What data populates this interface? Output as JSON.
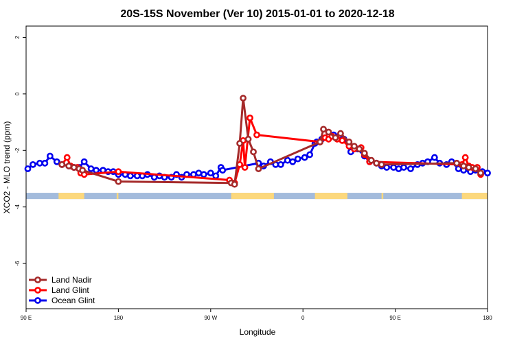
{
  "chart_data": {
    "type": "line",
    "title": "20S-15S November (Ver 10)   2015-01-01 to 2020-12-18",
    "xlabel": "Longitude",
    "ylabel": "XCO2 - MLO trend (ppm)",
    "xlim": [
      -90,
      180
    ],
    "ylim": [
      -7.6,
      2.4
    ],
    "x_ticks": [
      {
        "value": -90,
        "label": "90 E"
      },
      {
        "value": -36,
        "label": "180"
      },
      {
        "value": 18,
        "label": "90 W"
      },
      {
        "value": 72,
        "label": "0"
      },
      {
        "value": 126,
        "label": "90 E"
      },
      {
        "value": 180,
        "label": "180"
      }
    ],
    "y_ticks": [
      {
        "value": 2,
        "label": "2"
      },
      {
        "value": 0,
        "label": "0"
      },
      {
        "value": -2,
        "label": "-2"
      },
      {
        "value": -4,
        "label": "-4"
      },
      {
        "value": -6,
        "label": "-6"
      }
    ],
    "land_band": {
      "y_top": -3.5,
      "y_bottom": -3.72,
      "ocean_color": "#a3bbdc",
      "land_color": "#fcd87c",
      "land_segments": [
        [
          -71,
          -56
        ],
        [
          -37,
          -36
        ],
        [
          30,
          55
        ],
        [
          79,
          98
        ],
        [
          118,
          119
        ],
        [
          165,
          180
        ]
      ]
    },
    "legend_position": "bottom-left",
    "series": [
      {
        "name": "Land Nadir",
        "color": "#a52a2a",
        "x": [
          -69,
          -65,
          -62,
          -59,
          -57,
          -36,
          30,
          32,
          35,
          37,
          40,
          43,
          46,
          82,
          84,
          87,
          91,
          94,
          99,
          102,
          105,
          108,
          112,
          115,
          118,
          162,
          166,
          169,
          173,
          176
        ],
        "y": [
          -2.5,
          -2.55,
          -2.6,
          -2.65,
          -2.7,
          -3.1,
          -3.15,
          -3.2,
          -1.75,
          -0.15,
          -1.6,
          -2.05,
          -2.65,
          -1.7,
          -1.25,
          -1.35,
          -1.55,
          -1.4,
          -1.7,
          -1.85,
          -1.95,
          -2.1,
          -2.35,
          -2.45,
          -2.5,
          -2.45,
          -2.55,
          -2.6,
          -2.65,
          -2.8
        ]
      },
      {
        "name": "Land Glint",
        "color": "#ff0000",
        "x": [
          -69,
          -66,
          -64,
          -62,
          -60,
          -58,
          -56,
          -36,
          29,
          32,
          35,
          37,
          38,
          41,
          45,
          82,
          85,
          87,
          89,
          92,
          95,
          99,
          102,
          106,
          108,
          111,
          165,
          167,
          169,
          171,
          174,
          176
        ],
        "y": [
          -2.5,
          -2.25,
          -2.55,
          -2.6,
          -2.6,
          -2.8,
          -2.85,
          -2.75,
          -3.05,
          -3.15,
          -2.5,
          -1.65,
          -2.6,
          -0.85,
          -1.45,
          -1.7,
          -1.55,
          -1.6,
          -1.5,
          -1.6,
          -1.65,
          -1.85,
          -1.95,
          -1.9,
          -2.15,
          -2.4,
          -2.5,
          -2.25,
          -2.55,
          -2.6,
          -2.6,
          -2.85
        ]
      },
      {
        "name": "Ocean Glint",
        "color": "#0000ee",
        "x": [
          -89,
          -86,
          -82,
          -79,
          -76,
          -72,
          -69,
          -65,
          -62,
          -59,
          -56,
          -52,
          -49,
          -45,
          -42,
          -39,
          -36,
          -32,
          -29,
          -25,
          -22,
          -19,
          -15,
          -12,
          -9,
          -5,
          -2,
          1,
          4,
          8,
          11,
          14,
          18,
          21,
          24,
          25,
          46,
          49,
          53,
          56,
          59,
          63,
          66,
          69,
          73,
          76,
          79,
          80,
          83,
          87,
          90,
          93,
          96,
          100,
          104,
          108,
          111,
          115,
          118,
          121,
          125,
          128,
          131,
          135,
          139,
          142,
          145,
          149,
          152,
          156,
          159,
          163,
          166,
          170,
          173,
          177,
          180
        ],
        "y": [
          -2.65,
          -2.5,
          -2.45,
          -2.45,
          -2.2,
          -2.4,
          -2.5,
          -2.55,
          -2.6,
          -2.6,
          -2.4,
          -2.65,
          -2.7,
          -2.7,
          -2.75,
          -2.75,
          -2.85,
          -2.85,
          -2.9,
          -2.9,
          -2.9,
          -2.85,
          -2.95,
          -2.9,
          -2.95,
          -2.95,
          -2.85,
          -2.95,
          -2.85,
          -2.85,
          -2.8,
          -2.85,
          -2.8,
          -2.9,
          -2.6,
          -2.7,
          -2.45,
          -2.55,
          -2.4,
          -2.5,
          -2.5,
          -2.35,
          -2.4,
          -2.3,
          -2.25,
          -2.15,
          -1.75,
          -1.7,
          -1.6,
          -1.5,
          -1.45,
          -1.5,
          -1.6,
          -2.05,
          -1.95,
          -2.2,
          -2.4,
          -2.45,
          -2.55,
          -2.6,
          -2.6,
          -2.65,
          -2.6,
          -2.65,
          -2.5,
          -2.45,
          -2.4,
          -2.25,
          -2.45,
          -2.5,
          -2.4,
          -2.65,
          -2.7,
          -2.75,
          -2.7,
          -2.75,
          -2.8
        ]
      }
    ]
  }
}
